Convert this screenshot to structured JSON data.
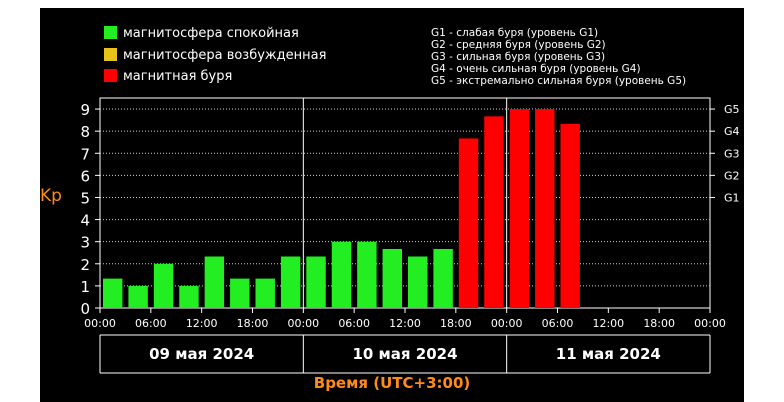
{
  "legend": [
    {
      "label": "магнитосфера спокойная",
      "color": "#22ee22"
    },
    {
      "label": "магнитосфера возбужденная",
      "color": "#e8c21a"
    },
    {
      "label": "магнитная буря",
      "color": "#ff0000"
    }
  ],
  "g_legend": [
    "G1 - слабая буря (уровень G1)",
    "G2 - средняя буря (уровень G2)",
    "G3 - сильная буря (уровень G3)",
    "G4 - очень сильная буря (уровень G4)",
    "G5 - экстремально сильная буря (уровень G5)"
  ],
  "chart_data": {
    "type": "bar",
    "ylabel": "Kp",
    "xlabel": "Время (UTC+3:00)",
    "ylim": [
      0,
      9.5
    ],
    "y_ticks": [
      "0",
      "1",
      "2",
      "3",
      "4",
      "5",
      "6",
      "7",
      "8",
      "9"
    ],
    "right_ticks": [
      {
        "label": "G1",
        "value": 5
      },
      {
        "label": "G2",
        "value": 6
      },
      {
        "label": "G3",
        "value": 7
      },
      {
        "label": "G4",
        "value": 8
      },
      {
        "label": "G5",
        "value": 9
      }
    ],
    "x_tick_labels": [
      "00:00",
      "06:00",
      "12:00",
      "18:00",
      "00:00",
      "06:00",
      "12:00",
      "18:00",
      "00:00",
      "06:00",
      "12:00",
      "18:00",
      "00:00"
    ],
    "days": [
      "09 мая 2024",
      "10 мая 2024",
      "11 мая 2024"
    ],
    "bars": [
      {
        "start": "09 мая 2024 00:00",
        "value": 1.33,
        "status": "calm"
      },
      {
        "start": "09 мая 2024 03:00",
        "value": 1.0,
        "status": "calm"
      },
      {
        "start": "09 мая 2024 06:00",
        "value": 2.0,
        "status": "calm"
      },
      {
        "start": "09 мая 2024 09:00",
        "value": 1.0,
        "status": "calm"
      },
      {
        "start": "09 мая 2024 12:00",
        "value": 2.33,
        "status": "calm"
      },
      {
        "start": "09 мая 2024 15:00",
        "value": 1.33,
        "status": "calm"
      },
      {
        "start": "09 мая 2024 18:00",
        "value": 1.33,
        "status": "calm"
      },
      {
        "start": "09 мая 2024 21:00",
        "value": 2.33,
        "status": "calm"
      },
      {
        "start": "10 мая 2024 00:00",
        "value": 2.33,
        "status": "calm"
      },
      {
        "start": "10 мая 2024 03:00",
        "value": 3.0,
        "status": "calm"
      },
      {
        "start": "10 мая 2024 06:00",
        "value": 3.0,
        "status": "calm"
      },
      {
        "start": "10 мая 2024 09:00",
        "value": 2.67,
        "status": "calm"
      },
      {
        "start": "10 мая 2024 12:00",
        "value": 2.33,
        "status": "calm"
      },
      {
        "start": "10 мая 2024 15:00",
        "value": 2.67,
        "status": "calm"
      },
      {
        "start": "10 мая 2024 18:00",
        "value": 7.67,
        "status": "storm"
      },
      {
        "start": "10 мая 2024 21:00",
        "value": 8.67,
        "status": "storm"
      },
      {
        "start": "11 мая 2024 00:00",
        "value": 9.0,
        "status": "storm"
      },
      {
        "start": "11 мая 2024 03:00",
        "value": 9.0,
        "status": "storm"
      },
      {
        "start": "11 мая 2024 06:00",
        "value": 8.33,
        "status": "storm"
      }
    ],
    "total_slots": 24,
    "status_colors": {
      "calm": "#22ee22",
      "active": "#e8c21a",
      "storm": "#ff0000"
    },
    "grid": true
  }
}
